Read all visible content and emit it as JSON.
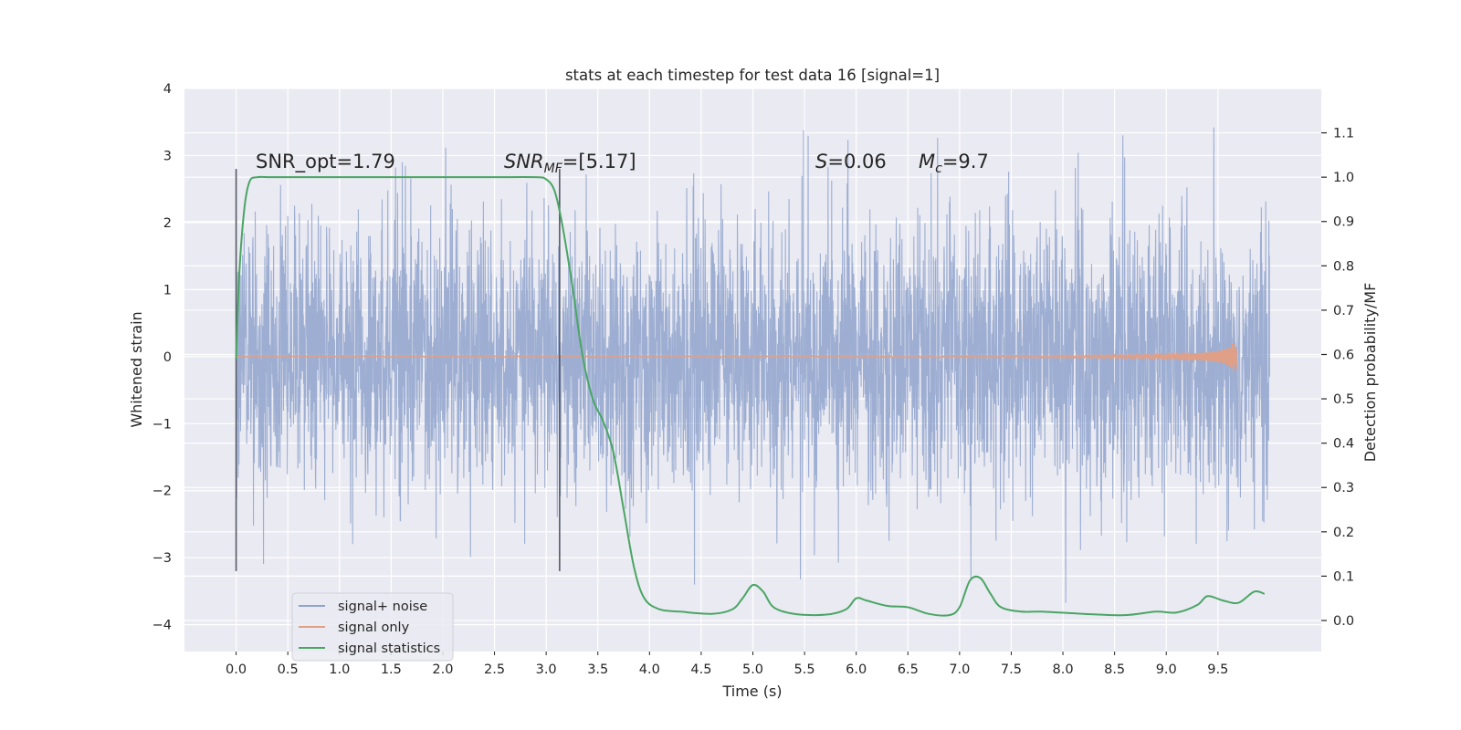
{
  "chart_data": {
    "type": "line",
    "title": "stats at each timestep for test data 16 [signal=1]",
    "xlabel": "Time (s)",
    "ylabel": "Whitened strain",
    "y2label": "Detection probability/MF",
    "xlim": [
      -0.5,
      10.5
    ],
    "ylim": [
      -4.4,
      4.0
    ],
    "y2lim": [
      -0.07,
      1.2
    ],
    "grid": true,
    "legend_placement": "lower-left",
    "xticks": [
      "0.0",
      "0.5",
      "1.0",
      "1.5",
      "2.0",
      "2.5",
      "3.0",
      "3.5",
      "4.0",
      "4.5",
      "5.0",
      "5.5",
      "6.0",
      "6.5",
      "7.0",
      "7.5",
      "8.0",
      "8.5",
      "9.0",
      "9.5"
    ],
    "yticks": [
      "4",
      "3",
      "2",
      "1",
      "0",
      "−1",
      "−2",
      "−3",
      "−4"
    ],
    "y2ticks": [
      "1.1",
      "1.0",
      "0.9",
      "0.8",
      "0.7",
      "0.6",
      "0.5",
      "0.4",
      "0.3",
      "0.2",
      "0.1",
      "0.0"
    ],
    "annotations": {
      "snr_opt": "SNR_opt=1.79",
      "snr_mf_base": "SNR",
      "snr_mf_sub": "MF",
      "snr_mf_val": "=[5.17]",
      "s_base": "S",
      "s_val": "=0.06",
      "mc_base": "M",
      "mc_sub": "c",
      "mc_val": "=9.7"
    },
    "vlines": [
      {
        "x": 0.0,
        "y_range": [
          -3.2,
          2.8
        ]
      },
      {
        "x": 3.13,
        "y_range": [
          -3.2,
          2.8
        ]
      }
    ],
    "series": [
      {
        "name": "signal+ noise",
        "axis": "left",
        "color": "#8fa3cc",
        "kind": "dense noise",
        "t_range": [
          0.0,
          10.0
        ],
        "envelope_typical": [
          -1.5,
          1.5
        ],
        "peak_max": 3.62,
        "peak_min": -4.05
      },
      {
        "name": "signal only",
        "axis": "left",
        "color": "#e09f87",
        "kind": "chirp",
        "t_range": [
          0.0,
          9.7
        ],
        "peak_amplitude": 0.23,
        "peak_time": 9.65
      },
      {
        "name": "signal statistics",
        "axis": "right",
        "color": "#4aa564",
        "x": [
          0.0,
          0.03,
          0.08,
          0.13,
          0.2,
          0.35,
          0.6,
          1.0,
          1.5,
          2.0,
          2.5,
          2.9,
          3.0,
          3.08,
          3.15,
          3.25,
          3.35,
          3.45,
          3.55,
          3.65,
          3.75,
          3.85,
          3.95,
          4.1,
          4.3,
          4.6,
          4.8,
          4.9,
          5.0,
          5.1,
          5.2,
          5.4,
          5.7,
          5.9,
          6.0,
          6.1,
          6.3,
          6.5,
          6.7,
          6.9,
          7.0,
          7.1,
          7.2,
          7.3,
          7.4,
          7.6,
          7.8,
          8.2,
          8.6,
          8.9,
          9.1,
          9.3,
          9.4,
          9.55,
          9.7,
          9.85,
          9.95
        ],
        "y": [
          0.59,
          0.78,
          0.93,
          0.99,
          1.0,
          1.0,
          1.0,
          1.0,
          1.0,
          1.0,
          1.0,
          1.0,
          0.995,
          0.97,
          0.9,
          0.76,
          0.6,
          0.5,
          0.45,
          0.38,
          0.25,
          0.12,
          0.05,
          0.025,
          0.02,
          0.015,
          0.025,
          0.05,
          0.08,
          0.065,
          0.03,
          0.015,
          0.013,
          0.025,
          0.05,
          0.045,
          0.033,
          0.03,
          0.015,
          0.012,
          0.03,
          0.09,
          0.096,
          0.06,
          0.03,
          0.02,
          0.02,
          0.015,
          0.012,
          0.02,
          0.018,
          0.035,
          0.055,
          0.045,
          0.04,
          0.065,
          0.06
        ]
      }
    ]
  }
}
